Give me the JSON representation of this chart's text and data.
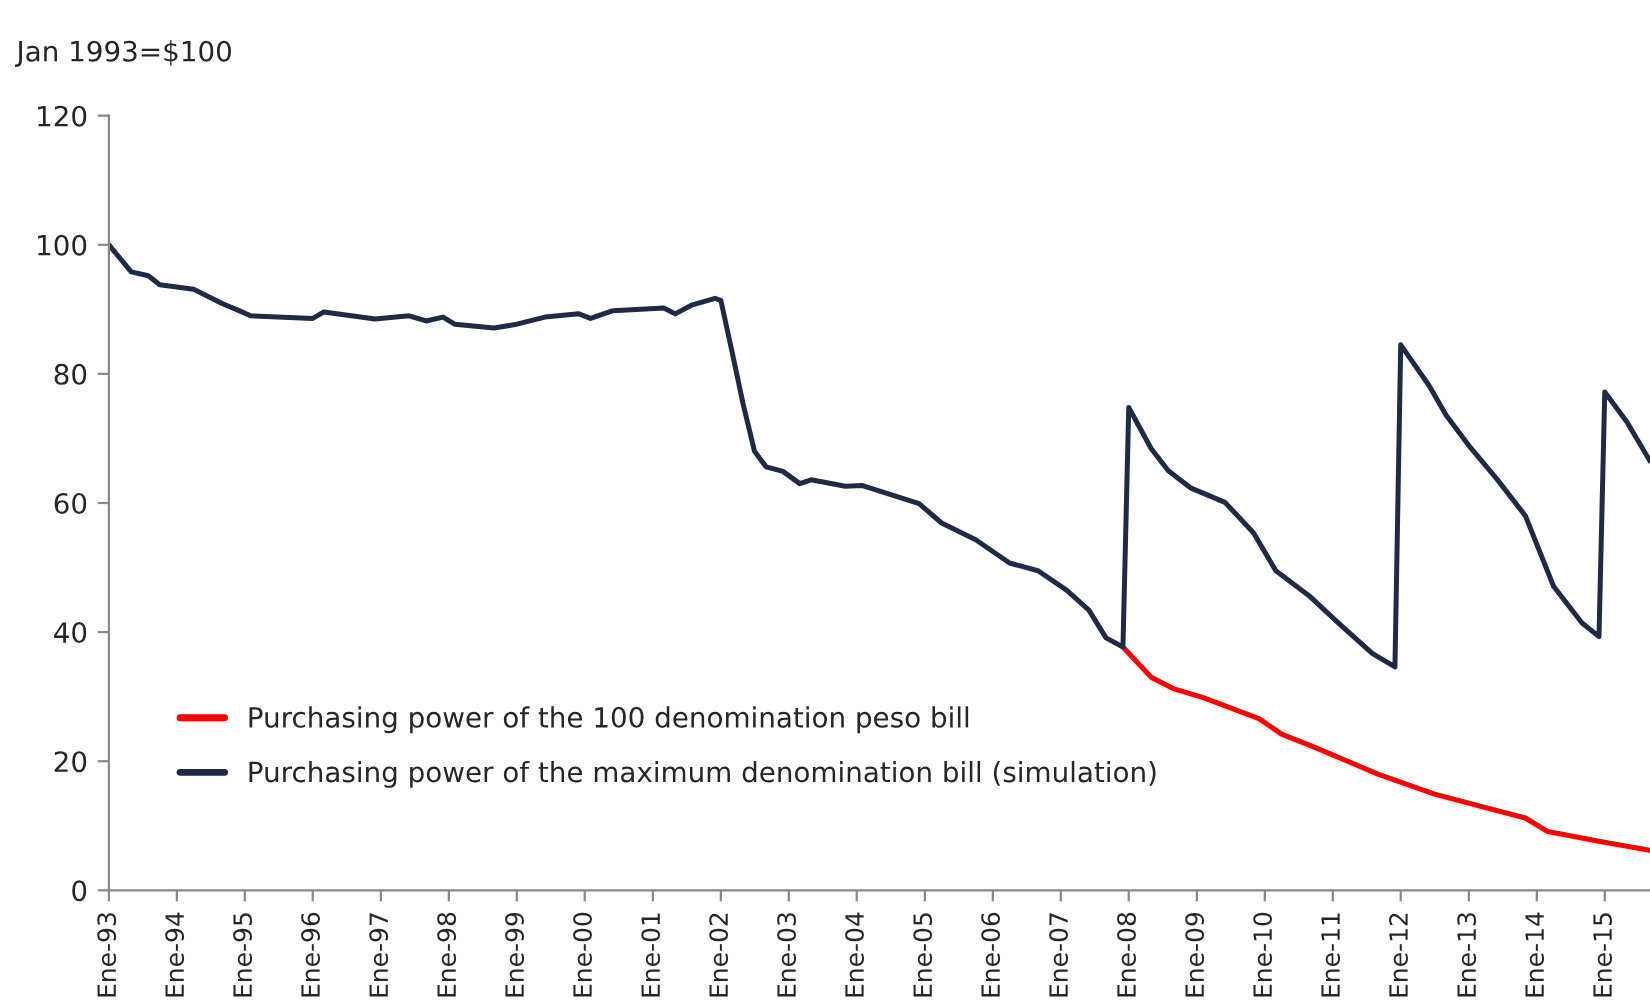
{
  "chart_data": {
    "type": "line",
    "title": "Jan 1993=$100",
    "series": [
      {
        "name": "Purchasing power of the 100 denomination peso bill",
        "color": "#ff0000",
        "x": [
          "2007-12",
          "2008-05",
          "2008-09",
          "2009-02",
          "2009-12",
          "2010-04",
          "2010-10",
          "2011-09",
          "2012-07",
          "2013-11",
          "2014-03",
          "2014-12",
          "2015-09"
        ],
        "values": [
          37.7,
          33,
          31.2,
          29.9,
          26.6,
          24.2,
          22.1,
          18,
          14.9,
          11.2,
          9.1,
          7.6,
          6.2
        ]
      },
      {
        "name": "Purchasing power of the maximum denomination bill (simulation)",
        "color": "#1f2a44",
        "x": [
          "1993-01",
          "1993-05",
          "1993-08",
          "1993-10",
          "1994-04",
          "1994-09",
          "1994-12",
          "1995-02",
          "1996-01",
          "1996-03",
          "1996-12",
          "1997-06",
          "1997-09",
          "1997-12",
          "1998-02",
          "1998-09",
          "1999-01",
          "1999-06",
          "1999-12",
          "2000-02",
          "2000-06",
          "2001-03",
          "2001-05",
          "2001-08",
          "2001-12",
          "2002-01",
          "2002-03",
          "2002-05",
          "2002-07",
          "2002-09",
          "2002-12",
          "2003-03",
          "2003-05",
          "2003-11",
          "2004-02",
          "2004-12",
          "2005-04",
          "2005-10",
          "2006-04",
          "2006-09",
          "2007-02",
          "2007-06",
          "2007-09",
          "2007-12",
          "2008-01",
          "2008-05",
          "2008-08",
          "2008-12",
          "2009-06",
          "2009-11",
          "2010-03",
          "2010-09",
          "2011-02",
          "2011-08",
          "2011-12",
          "2012-01",
          "2012-06",
          "2012-09",
          "2013-01",
          "2013-06",
          "2013-11",
          "2014-04",
          "2014-09",
          "2014-12",
          "2015-01",
          "2015-05",
          "2015-09"
        ],
        "values": [
          100,
          95.8,
          95.2,
          93.8,
          93.1,
          90.9,
          89.8,
          89,
          88.6,
          89.6,
          88.5,
          89,
          88.2,
          88.8,
          87.7,
          87.1,
          87.7,
          88.8,
          89.3,
          88.6,
          89.8,
          90.2,
          89.3,
          90.7,
          91.7,
          91.4,
          83.6,
          75.3,
          68,
          65.6,
          64.9,
          63,
          63.6,
          62.6,
          62.7,
          59.9,
          56.9,
          54.3,
          50.7,
          49.5,
          46.5,
          43.4,
          39.1,
          37.7,
          74.8,
          68.4,
          65,
          62.3,
          60.1,
          55.4,
          49.5,
          45.5,
          41.4,
          36.7,
          34.6,
          84.5,
          78.2,
          73.6,
          68.9,
          63.7,
          58,
          47.1,
          41.4,
          39.3,
          77.2,
          72.5,
          66.5
        ]
      }
    ],
    "xlim": [
      "1993-01",
      "2015-09"
    ],
    "xticks": [
      {
        "value": "1993-01",
        "label": "Ene-93"
      },
      {
        "value": "1994-01",
        "label": "Ene-94"
      },
      {
        "value": "1995-01",
        "label": "Ene-95"
      },
      {
        "value": "1996-01",
        "label": "Ene-96"
      },
      {
        "value": "1997-01",
        "label": "Ene-97"
      },
      {
        "value": "1998-01",
        "label": "Ene-98"
      },
      {
        "value": "1999-01",
        "label": "Ene-99"
      },
      {
        "value": "2000-01",
        "label": "Ene-00"
      },
      {
        "value": "2001-01",
        "label": "Ene-01"
      },
      {
        "value": "2002-01",
        "label": "Ene-02"
      },
      {
        "value": "2003-01",
        "label": "Ene-03"
      },
      {
        "value": "2004-01",
        "label": "Ene-04"
      },
      {
        "value": "2005-01",
        "label": "Ene-05"
      },
      {
        "value": "2006-01",
        "label": "Ene-06"
      },
      {
        "value": "2007-01",
        "label": "Ene-07"
      },
      {
        "value": "2008-01",
        "label": "Ene-08"
      },
      {
        "value": "2009-01",
        "label": "Ene-09"
      },
      {
        "value": "2010-01",
        "label": "Ene-10"
      },
      {
        "value": "2011-01",
        "label": "Ene-11"
      },
      {
        "value": "2012-01",
        "label": "Ene-12"
      },
      {
        "value": "2013-01",
        "label": "Ene-13"
      },
      {
        "value": "2014-01",
        "label": "Ene-14"
      },
      {
        "value": "2015-01",
        "label": "Ene-15"
      }
    ],
    "ylim": [
      0,
      120
    ],
    "yticks": [
      0,
      20,
      40,
      60,
      80,
      100,
      120
    ],
    "grid": false,
    "legend": "bottom left",
    "marker": "none",
    "line_style": "solid"
  }
}
